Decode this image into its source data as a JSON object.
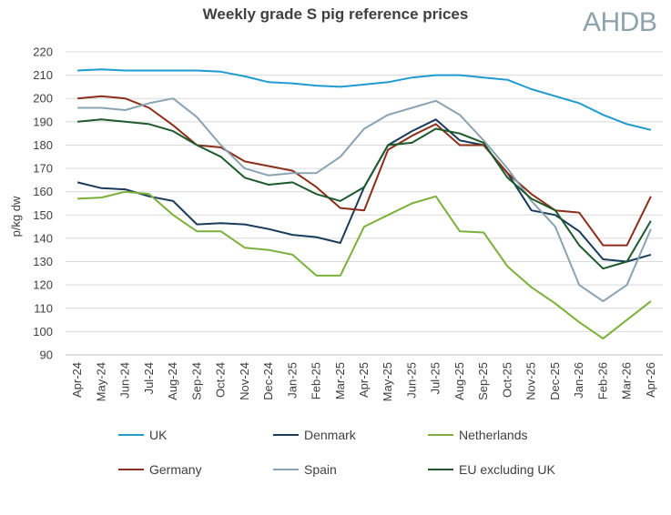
{
  "chart_data": {
    "type": "line",
    "title": "Weekly grade S pig reference prices",
    "brand": "AHDB",
    "ylabel": "p/kg dw",
    "xlabel": "",
    "ylim": [
      90,
      220
    ],
    "yticks": [
      90,
      100,
      110,
      120,
      130,
      140,
      150,
      160,
      170,
      180,
      190,
      200,
      210,
      220
    ],
    "grid": "horizontal",
    "legend_position": "bottom",
    "categories": [
      "Apr-24",
      "May-24",
      "Jun-24",
      "Jul-24",
      "Aug-24",
      "Sep-24",
      "Oct-24",
      "Nov-24",
      "Dec-24",
      "Jan-25",
      "Feb-25",
      "Mar-25",
      "Apr-25",
      "May-25",
      "Jun-25",
      "Jul-25",
      "Aug-25",
      "Sep-25",
      "Oct-25",
      "Nov-25",
      "Dec-25",
      "Jan-26",
      "Feb-26",
      "Mar-26",
      "Apr-26"
    ],
    "series": [
      {
        "name": "UK",
        "color": "#1f9bd1",
        "values": [
          212,
          212.5,
          212,
          212,
          212,
          212,
          211.5,
          209.5,
          207,
          206.5,
          205.5,
          205,
          206,
          207,
          209,
          210,
          210,
          209,
          208,
          204,
          201,
          198,
          193,
          189,
          186.5
        ]
      },
      {
        "name": "Denmark",
        "color": "#1a3b5c",
        "values": [
          164,
          161.5,
          161,
          158,
          156,
          146,
          146.5,
          146,
          144,
          141.5,
          140.5,
          138,
          162,
          180,
          186,
          191,
          182,
          180,
          168,
          152,
          150,
          143,
          131,
          130,
          133
        ]
      },
      {
        "name": "Netherlands",
        "color": "#7bb03a",
        "values": [
          157,
          157.5,
          160,
          159,
          150,
          143,
          143,
          136,
          135,
          133,
          124,
          124,
          145,
          150,
          155,
          158,
          143,
          142.5,
          128,
          119,
          112,
          104,
          97,
          105,
          113
        ]
      },
      {
        "name": "Germany",
        "color": "#8b2e1a",
        "values": [
          200,
          201,
          200,
          196,
          188.5,
          180,
          179,
          173,
          171,
          169,
          162,
          153,
          152,
          178,
          184,
          189,
          180,
          180,
          168,
          159,
          152,
          151,
          137,
          137,
          158
        ]
      },
      {
        "name": "Spain",
        "color": "#8aa3b3",
        "values": [
          196,
          196,
          195,
          198,
          200,
          192,
          180,
          170,
          167,
          168,
          168,
          175,
          187,
          193,
          196,
          199,
          193,
          182,
          170,
          156,
          145,
          120,
          113,
          120,
          144
        ]
      },
      {
        "name": "EU excluding UK",
        "color": "#1d5a2c",
        "values": [
          190,
          191,
          190,
          189,
          186,
          180,
          175,
          166,
          163,
          164,
          159,
          156,
          162,
          180,
          181,
          187,
          185,
          181,
          166,
          157,
          152,
          137,
          127,
          130,
          147.5
        ]
      }
    ]
  }
}
